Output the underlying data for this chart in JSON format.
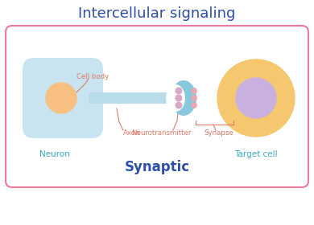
{
  "title": "Intercellular signaling",
  "subtitle": "Synaptic",
  "label_neuron": "Neuron",
  "label_target": "Target cell",
  "label_axon": "Axon",
  "label_cell_body": "Cell body",
  "label_neurotransmitter": "Neurotransmitter",
  "label_synapse": "Synapse",
  "title_color": "#2d4faa",
  "subtitle_color": "#2d4faa",
  "label_color_salmon": "#e07868",
  "label_color_teal": "#3aacbf",
  "box_border_color": "#f07898",
  "bg_color": "#ffffff",
  "neuron_body_color": "#c8e4f0",
  "neuron_body_outline": "#b0d4e8",
  "neuron_nucleus_color": "#f8c080",
  "axon_color": "#b8dcea",
  "terminal_color": "#88c8dc",
  "target_body_color": "#f5c870",
  "target_nucleus_color": "#c8b0e0",
  "vesicle_on_terminal_color": "#d8a8c8",
  "vesicle_released_color": "#e8a8b0"
}
